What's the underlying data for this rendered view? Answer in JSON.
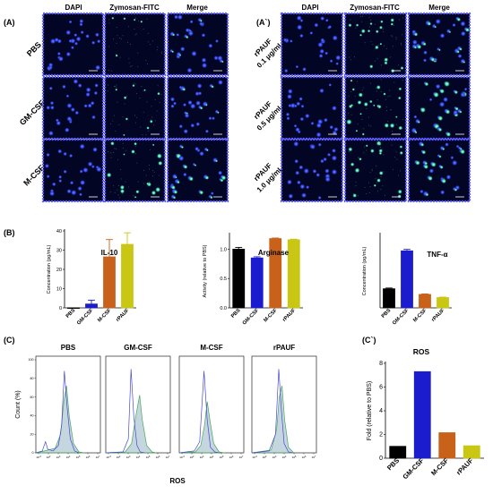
{
  "panel_a": {
    "label": "(A)",
    "columns": [
      "DAPI",
      "Zymosan-FITC",
      "Merge"
    ],
    "rows": [
      "PBS",
      "GM-CSF",
      "M-CSF"
    ]
  },
  "panel_a2": {
    "label": "(A`)",
    "columns": [
      "DAPI",
      "Zymosan-FITC",
      "Merge"
    ],
    "rows": [
      [
        "rPAUF",
        "0.1 μg/mL"
      ],
      [
        "rPAUF",
        "0.5 μg/mL"
      ],
      [
        "rPAUF",
        "1.0 μg/mL"
      ]
    ]
  },
  "panel_b_label": "(B)",
  "panel_c_label": "(C)",
  "panel_c2_label": "(C`)",
  "colors": {
    "PBS": "#000000",
    "GM-CSF": "#1c1ccf",
    "M-CSF": "#c8621a",
    "rPAUF": "#c9c713",
    "border": "#5a5aff",
    "cells": "#2a3fe0"
  },
  "chart_data": [
    {
      "id": "il10",
      "type": "bar",
      "title": "IL-10",
      "ylabel": "Concentration (pg/mL)",
      "xlabel": "",
      "categories": [
        "PBS",
        "GM-CSF",
        "M-CSF",
        "rPAUF"
      ],
      "values": [
        0,
        2,
        26.5,
        33
      ],
      "errors": [
        0,
        2,
        9,
        6
      ],
      "ylim": [
        0,
        40
      ],
      "yticks": [
        "0",
        "10",
        "20",
        "30",
        "40"
      ],
      "bar_style": "filled-except-first"
    },
    {
      "id": "arginase",
      "type": "bar",
      "title": "Arginase",
      "ylabel": "Activity (relative to PBS)",
      "xlabel": "",
      "categories": [
        "PBS",
        "GM-CSF",
        "M-CSF",
        "rPAUF"
      ],
      "values": [
        1.0,
        0.85,
        1.18,
        1.16
      ],
      "errors": [
        0.03,
        0.02,
        0.01,
        0.01
      ],
      "ylim": [
        0,
        1.25
      ],
      "yticks": [
        "0.0",
        "0.5",
        "1.0"
      ]
    },
    {
      "id": "tnfa",
      "type": "bar",
      "title": "TNF-α",
      "ylabel": "Concentration (pg/mL)",
      "xlabel": "",
      "categories": [
        "PBS",
        "GM-CSF",
        "M-CSF",
        "rPAUF"
      ],
      "values": [
        0.78,
        2.33,
        0.55,
        0.42
      ],
      "errors": [
        0.03,
        0.06,
        0.02,
        0.02
      ],
      "ylim": [
        0,
        3.0
      ],
      "yticks": []
    },
    {
      "id": "ros_hist",
      "type": "line",
      "xlabel": "ROS",
      "ylabel": "Count (%)",
      "titles": [
        "PBS",
        "GM-CSF",
        "M-CSF",
        "rPAUF"
      ],
      "xticks": [
        "10^-3",
        "10^2",
        "10^3",
        "10^4",
        "10^5",
        "10^6",
        "10^7"
      ],
      "yticks": [
        "0",
        "20",
        "40",
        "60",
        "80",
        "100"
      ],
      "panels": [
        {
          "name": "PBS",
          "control": [
            [
              0,
              0
            ],
            [
              0.6,
              2
            ],
            [
              0.9,
              12
            ],
            [
              1.1,
              4
            ],
            [
              1.6,
              2
            ],
            [
              2.1,
              8
            ],
            [
              2.4,
              30
            ],
            [
              2.65,
              88
            ],
            [
              2.9,
              50
            ],
            [
              3.2,
              15
            ],
            [
              3.6,
              2
            ],
            [
              4,
              0
            ]
          ],
          "sample": [
            [
              0,
              0
            ],
            [
              0.8,
              2
            ],
            [
              1.8,
              5
            ],
            [
              2.3,
              20
            ],
            [
              2.6,
              55
            ],
            [
              2.85,
              72
            ],
            [
              3.1,
              40
            ],
            [
              3.5,
              10
            ],
            [
              4,
              1
            ],
            [
              4.5,
              0
            ]
          ]
        },
        {
          "name": "GM-CSF",
          "control": [
            [
              0,
              0
            ],
            [
              1.6,
              1
            ],
            [
              2.1,
              15
            ],
            [
              2.35,
              90
            ],
            [
              2.6,
              40
            ],
            [
              2.9,
              8
            ],
            [
              3.2,
              1
            ],
            [
              3.6,
              0
            ]
          ],
          "sample": [
            [
              0,
              0
            ],
            [
              1.8,
              1
            ],
            [
              2.4,
              10
            ],
            [
              2.8,
              40
            ],
            [
              3.15,
              62
            ],
            [
              3.4,
              35
            ],
            [
              3.8,
              8
            ],
            [
              4.3,
              1
            ],
            [
              4.7,
              0
            ]
          ]
        },
        {
          "name": "M-CSF",
          "control": [
            [
              0,
              0
            ],
            [
              1.4,
              2
            ],
            [
              1.9,
              12
            ],
            [
              2.3,
              88
            ],
            [
              2.6,
              35
            ],
            [
              2.9,
              6
            ],
            [
              3.3,
              1
            ],
            [
              3.7,
              0
            ]
          ],
          "sample": [
            [
              0,
              0
            ],
            [
              1.5,
              1
            ],
            [
              2.0,
              8
            ],
            [
              2.35,
              30
            ],
            [
              2.6,
              55
            ],
            [
              2.85,
              35
            ],
            [
              3.2,
              10
            ],
            [
              3.7,
              1
            ],
            [
              4.2,
              0
            ]
          ]
        },
        {
          "name": "rPAUF",
          "control": [
            [
              0,
              0
            ],
            [
              1.6,
              2
            ],
            [
              2.2,
              20
            ],
            [
              2.5,
              90
            ],
            [
              2.75,
              45
            ],
            [
              3.0,
              10
            ],
            [
              3.4,
              1
            ],
            [
              3.8,
              0
            ]
          ],
          "sample": [
            [
              0,
              0
            ],
            [
              1.8,
              3
            ],
            [
              2.3,
              25
            ],
            [
              2.55,
              60
            ],
            [
              2.8,
              72
            ],
            [
              3.05,
              35
            ],
            [
              3.4,
              6
            ],
            [
              3.9,
              0
            ]
          ]
        }
      ]
    },
    {
      "id": "ros_fold",
      "type": "bar",
      "title": "ROS",
      "ylabel": "Fold (relative to PBS)",
      "xlabel": "",
      "categories": [
        "PBS",
        "GM-CSF",
        "M-CSF",
        "rPAUF"
      ],
      "values": [
        1.0,
        7.3,
        2.15,
        1.05
      ],
      "ylim": [
        0,
        8
      ],
      "yticks": [
        "0",
        "2",
        "4",
        "6",
        "8"
      ]
    }
  ]
}
